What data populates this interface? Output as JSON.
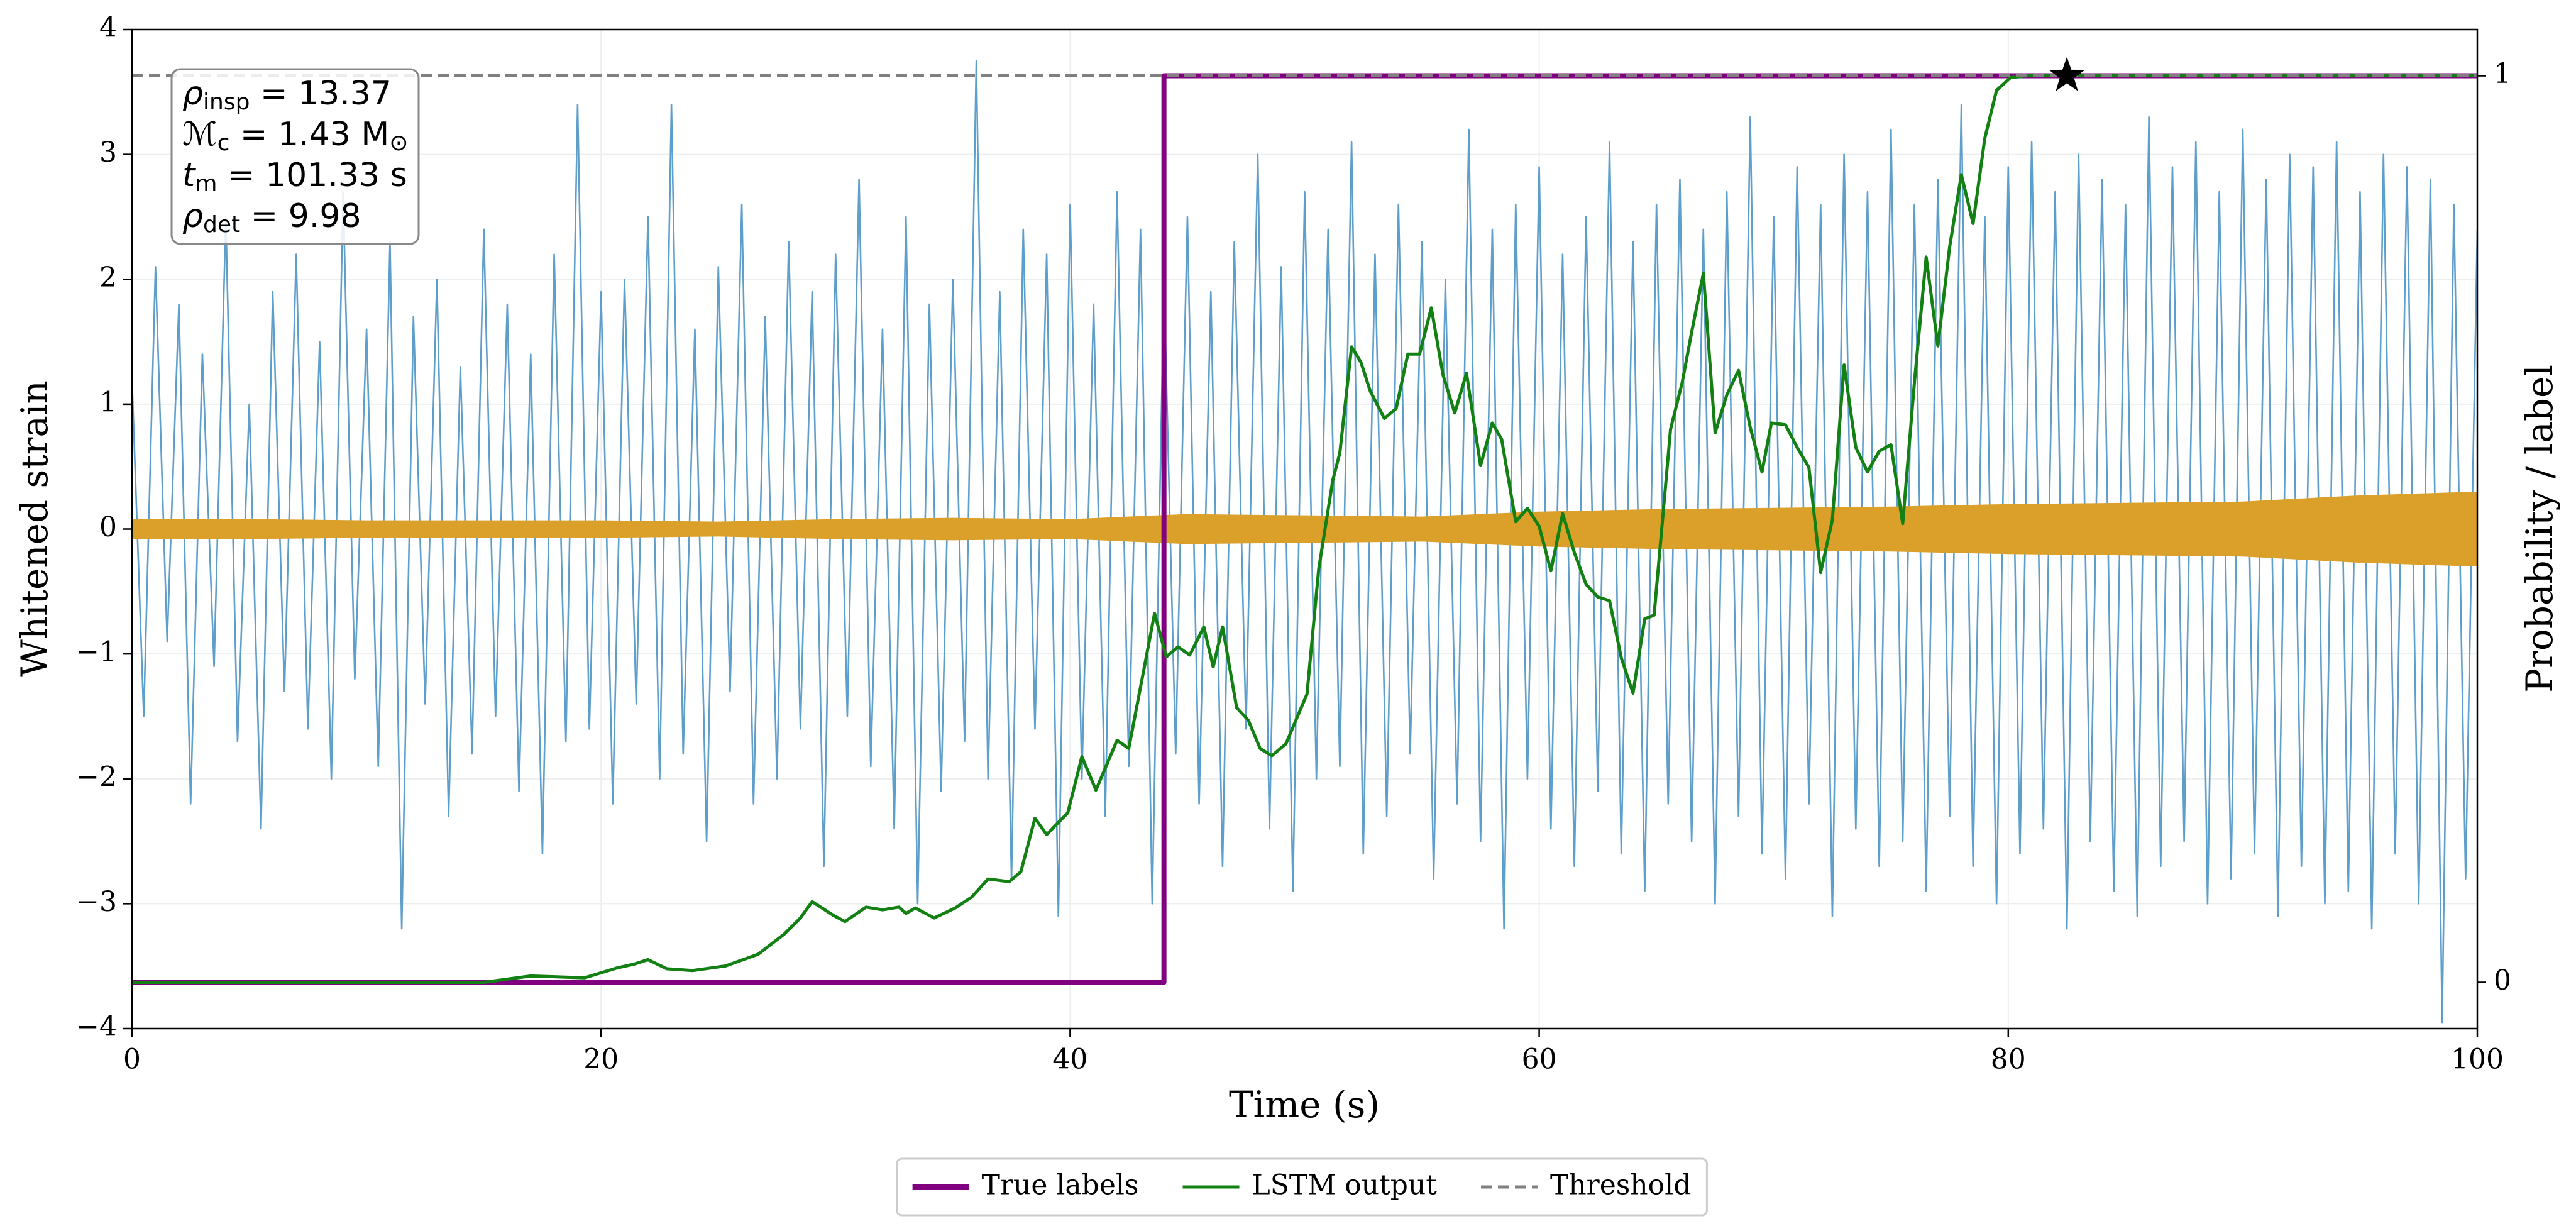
{
  "chart_data": {
    "type": "line",
    "xlabel": "Time (s)",
    "ylabel": "Whitened strain",
    "y2label": "Probability / label",
    "xlim": [
      0,
      100
    ],
    "xticks": [
      0,
      20,
      40,
      60,
      80,
      100
    ],
    "ylim": [
      -4,
      4
    ],
    "yticks": [
      {
        "value": -4,
        "label": "−4"
      },
      {
        "value": -3,
        "label": "−3"
      },
      {
        "value": -2,
        "label": "−2"
      },
      {
        "value": -1,
        "label": "−1"
      },
      0,
      1,
      2,
      3,
      4
    ],
    "y2lim": [
      -0.051,
      1.051
    ],
    "y2ticks": [
      0,
      1
    ],
    "grid": true,
    "legend": "bottom",
    "series": [
      {
        "color": "#5599c8",
        "style": "line",
        "x": [
          0,
          0.5,
          1,
          1.5,
          2,
          2.5,
          3,
          3.5,
          4,
          4.5,
          5,
          5.5,
          6,
          6.5,
          7,
          7.5,
          8,
          8.5,
          9,
          9.5,
          10,
          10.5,
          11,
          11.5,
          12,
          12.5,
          13,
          13.5,
          14,
          14.5,
          15,
          15.5,
          16,
          16.5,
          17,
          17.5,
          18,
          18.5,
          19,
          19.5,
          20,
          20.5,
          21,
          21.5,
          22,
          22.5,
          23,
          23.5,
          24,
          24.5,
          25,
          25.5,
          26,
          26.5,
          27,
          27.5,
          28,
          28.5,
          29,
          29.5,
          30,
          30.5,
          31,
          31.5,
          32,
          32.5,
          33,
          33.5,
          34,
          34.5,
          35,
          35.5,
          36,
          36.5,
          37,
          37.5,
          38,
          38.5,
          39,
          39.5,
          40,
          40.5,
          41,
          41.5,
          42,
          42.5,
          43,
          43.5,
          44,
          44.5,
          45,
          45.5,
          46,
          46.5,
          47,
          47.5,
          48,
          48.5,
          49,
          49.5,
          50,
          50.5,
          51,
          51.5,
          52,
          52.5,
          53,
          53.5,
          54,
          54.5,
          55,
          55.5,
          56,
          56.5,
          57,
          57.5,
          58,
          58.5,
          59,
          59.5,
          60,
          60.5,
          61,
          61.5,
          62,
          62.5,
          63,
          63.5,
          64,
          64.5,
          65,
          65.5,
          66,
          66.5,
          67,
          67.5,
          68,
          68.5,
          69,
          69.5,
          70,
          70.5,
          71,
          71.5,
          72,
          72.5,
          73,
          73.5,
          74,
          74.5,
          75,
          75.5,
          76,
          76.5,
          77,
          77.5,
          78,
          78.5,
          79,
          79.5,
          80,
          80.5,
          81,
          81.5,
          82,
          82.5,
          83,
          83.5,
          84,
          84.5,
          85,
          85.5,
          86,
          86.5,
          87,
          87.5,
          88,
          88.5,
          89,
          89.5,
          90,
          90.5,
          91,
          91.5,
          92,
          92.5,
          93,
          93.5,
          94,
          94.5,
          95,
          95.5,
          96,
          96.5,
          97,
          97.5,
          98,
          98.5,
          99,
          99.5,
          100
        ],
        "values": [
          1.2,
          -1.5,
          2.1,
          -0.9,
          1.8,
          -2.2,
          1.4,
          -1.1,
          2.5,
          -1.7,
          1.0,
          -2.4,
          1.9,
          -1.3,
          2.2,
          -1.6,
          1.5,
          -2.0,
          2.7,
          -1.2,
          1.6,
          -1.9,
          2.3,
          -3.2,
          1.7,
          -1.4,
          2.0,
          -2.3,
          1.3,
          -1.8,
          2.4,
          -1.5,
          1.8,
          -2.1,
          1.4,
          -2.6,
          2.2,
          -1.7,
          3.4,
          -1.6,
          1.9,
          -2.2,
          2.0,
          -1.4,
          2.5,
          -2.0,
          3.4,
          -1.8,
          1.6,
          -2.5,
          2.1,
          -1.3,
          2.6,
          -2.2,
          1.7,
          -2.0,
          2.3,
          -1.6,
          1.9,
          -2.7,
          2.2,
          -1.5,
          2.8,
          -1.9,
          1.6,
          -2.4,
          2.5,
          -3.0,
          1.8,
          -2.1,
          2.0,
          -1.7,
          3.75,
          -2.0,
          1.9,
          -2.8,
          2.4,
          -1.6,
          2.2,
          -3.1,
          2.6,
          -2.0,
          1.8,
          -2.3,
          2.7,
          -1.9,
          2.4,
          -3.0,
          2.0,
          -1.8,
          2.5,
          -2.2,
          1.9,
          -2.7,
          2.3,
          -1.6,
          3.0,
          -2.4,
          2.1,
          -2.9,
          2.7,
          -2.0,
          2.4,
          -1.9,
          3.1,
          -2.6,
          2.2,
          -2.3,
          2.6,
          -1.8,
          2.3,
          -2.8,
          2.0,
          -2.2,
          3.2,
          -2.5,
          2.4,
          -3.2,
          2.6,
          -2.0,
          2.9,
          -2.4,
          2.2,
          -2.7,
          2.5,
          -2.1,
          3.1,
          -2.6,
          2.3,
          -2.9,
          2.6,
          -2.2,
          2.8,
          -2.5,
          2.4,
          -3.0,
          2.7,
          -2.3,
          3.3,
          -2.6,
          2.5,
          -2.8,
          2.9,
          -2.2,
          2.6,
          -3.1,
          3.0,
          -2.4,
          2.7,
          -2.7,
          3.2,
          -2.5,
          2.6,
          -2.9,
          2.8,
          -2.3,
          3.4,
          -2.7,
          2.5,
          -3.0,
          2.9,
          -2.6,
          3.1,
          -2.4,
          2.7,
          -3.2,
          3.0,
          -2.5,
          2.8,
          -2.9,
          2.6,
          -3.1,
          3.3,
          -2.7,
          2.9,
          -2.5,
          3.1,
          -3.0,
          2.7,
          -2.8,
          3.2,
          -2.6,
          2.8,
          -3.1,
          3.0,
          -2.7,
          2.9,
          -3.0,
          3.1,
          -2.9,
          2.7,
          -3.2,
          3.0,
          -2.6,
          2.9,
          -3.0,
          2.8,
          -3.95,
          2.6,
          -2.8,
          2.4
        ]
      },
      {
        "color": "#daa02a",
        "style": "band",
        "x": [
          0,
          5,
          10,
          15,
          20,
          25,
          30,
          35,
          40,
          45,
          50,
          55,
          60,
          65,
          70,
          75,
          80,
          85,
          90,
          95,
          100
        ],
        "values": [
          0.08,
          0.08,
          0.07,
          0.07,
          0.07,
          0.06,
          0.08,
          0.09,
          0.08,
          0.12,
          0.11,
          0.1,
          0.14,
          0.16,
          0.17,
          0.18,
          0.2,
          0.21,
          0.22,
          0.27,
          0.3
        ]
      },
      {
        "name": "True labels",
        "color": "#800080",
        "style": "line",
        "axis": "y2",
        "x": [
          0,
          44,
          44,
          100
        ],
        "values": [
          0,
          0,
          1,
          1
        ]
      },
      {
        "name": "LSTM output",
        "color": "#128012",
        "style": "line",
        "axis": "y2",
        "x": [
          0,
          15,
          17,
          19.3,
          20.7,
          21.4,
          22.0,
          22.8,
          23.9,
          25.3,
          26.7,
          27.8,
          28.5,
          29.0,
          29.9,
          30.4,
          31.3,
          32.0,
          32.7,
          33.0,
          33.4,
          34.2,
          35.1,
          35.8,
          36.5,
          37.4,
          37.9,
          38.5,
          39.0,
          39.9,
          40.5,
          41.1,
          42.0,
          42.5,
          43.1,
          43.6,
          44.1,
          44.6,
          45.1,
          45.7,
          46.1,
          46.5,
          47.1,
          47.6,
          48.1,
          48.6,
          49.2,
          50.1,
          50.6,
          51.2,
          51.5,
          52.0,
          52.4,
          52.8,
          53.4,
          53.9,
          54.4,
          54.9,
          55.4,
          55.9,
          56.4,
          56.9,
          57.5,
          58.0,
          58.4,
          59.0,
          59.5,
          60.0,
          60.5,
          61.0,
          61.5,
          62.0,
          62.5,
          63.0,
          63.5,
          64.0,
          64.5,
          64.9,
          65.6,
          66.1,
          66.5,
          67.0,
          67.5,
          68.0,
          68.5,
          69.0,
          69.5,
          69.9,
          70.5,
          71.0,
          71.5,
          72.0,
          72.5,
          73.0,
          73.5,
          74.0,
          74.5,
          75.0,
          75.5,
          76.0,
          76.5,
          77.0,
          77.5,
          78.0,
          78.5,
          79.0,
          79.5,
          80.1,
          80.8,
          100
        ],
        "values": [
          0,
          0,
          0.007,
          0.005,
          0.016,
          0.02,
          0.025,
          0.015,
          0.013,
          0.018,
          0.031,
          0.053,
          0.071,
          0.089,
          0.074,
          0.067,
          0.083,
          0.08,
          0.083,
          0.076,
          0.082,
          0.071,
          0.082,
          0.094,
          0.114,
          0.111,
          0.122,
          0.181,
          0.163,
          0.187,
          0.249,
          0.212,
          0.267,
          0.258,
          0.339,
          0.407,
          0.359,
          0.37,
          0.361,
          0.392,
          0.348,
          0.392,
          0.303,
          0.289,
          0.258,
          0.25,
          0.263,
          0.318,
          0.456,
          0.554,
          0.584,
          0.701,
          0.684,
          0.652,
          0.622,
          0.633,
          0.693,
          0.693,
          0.744,
          0.67,
          0.628,
          0.672,
          0.57,
          0.617,
          0.599,
          0.508,
          0.523,
          0.503,
          0.454,
          0.517,
          0.474,
          0.439,
          0.425,
          0.421,
          0.358,
          0.319,
          0.401,
          0.405,
          0.61,
          0.662,
          0.717,
          0.782,
          0.606,
          0.648,
          0.675,
          0.612,
          0.563,
          0.617,
          0.615,
          0.59,
          0.568,
          0.452,
          0.51,
          0.681,
          0.59,
          0.563,
          0.586,
          0.593,
          0.506,
          0.662,
          0.8,
          0.702,
          0.811,
          0.891,
          0.837,
          0.931,
          0.984,
          0.998,
          1.0,
          1.0
        ]
      }
    ],
    "threshold": {
      "name": "Threshold",
      "color": "#808080",
      "value": 1,
      "axis": "y2"
    },
    "detection": {
      "x": 82.5,
      "value": 1,
      "axis": "y2",
      "color": "#000000"
    },
    "annotation": [
      {
        "text": "ρ",
        "sub": "insp",
        "rest": " = 13.37"
      },
      {
        "text": "ℳ",
        "sub": "c",
        "rest": " = 1.43 M",
        "sub2": "⊙"
      },
      {
        "text": "t",
        "sub": "m",
        "rest": " = 101.33 s"
      },
      {
        "text": "ρ",
        "sub": "det",
        "rest": " = 9.98"
      }
    ]
  }
}
